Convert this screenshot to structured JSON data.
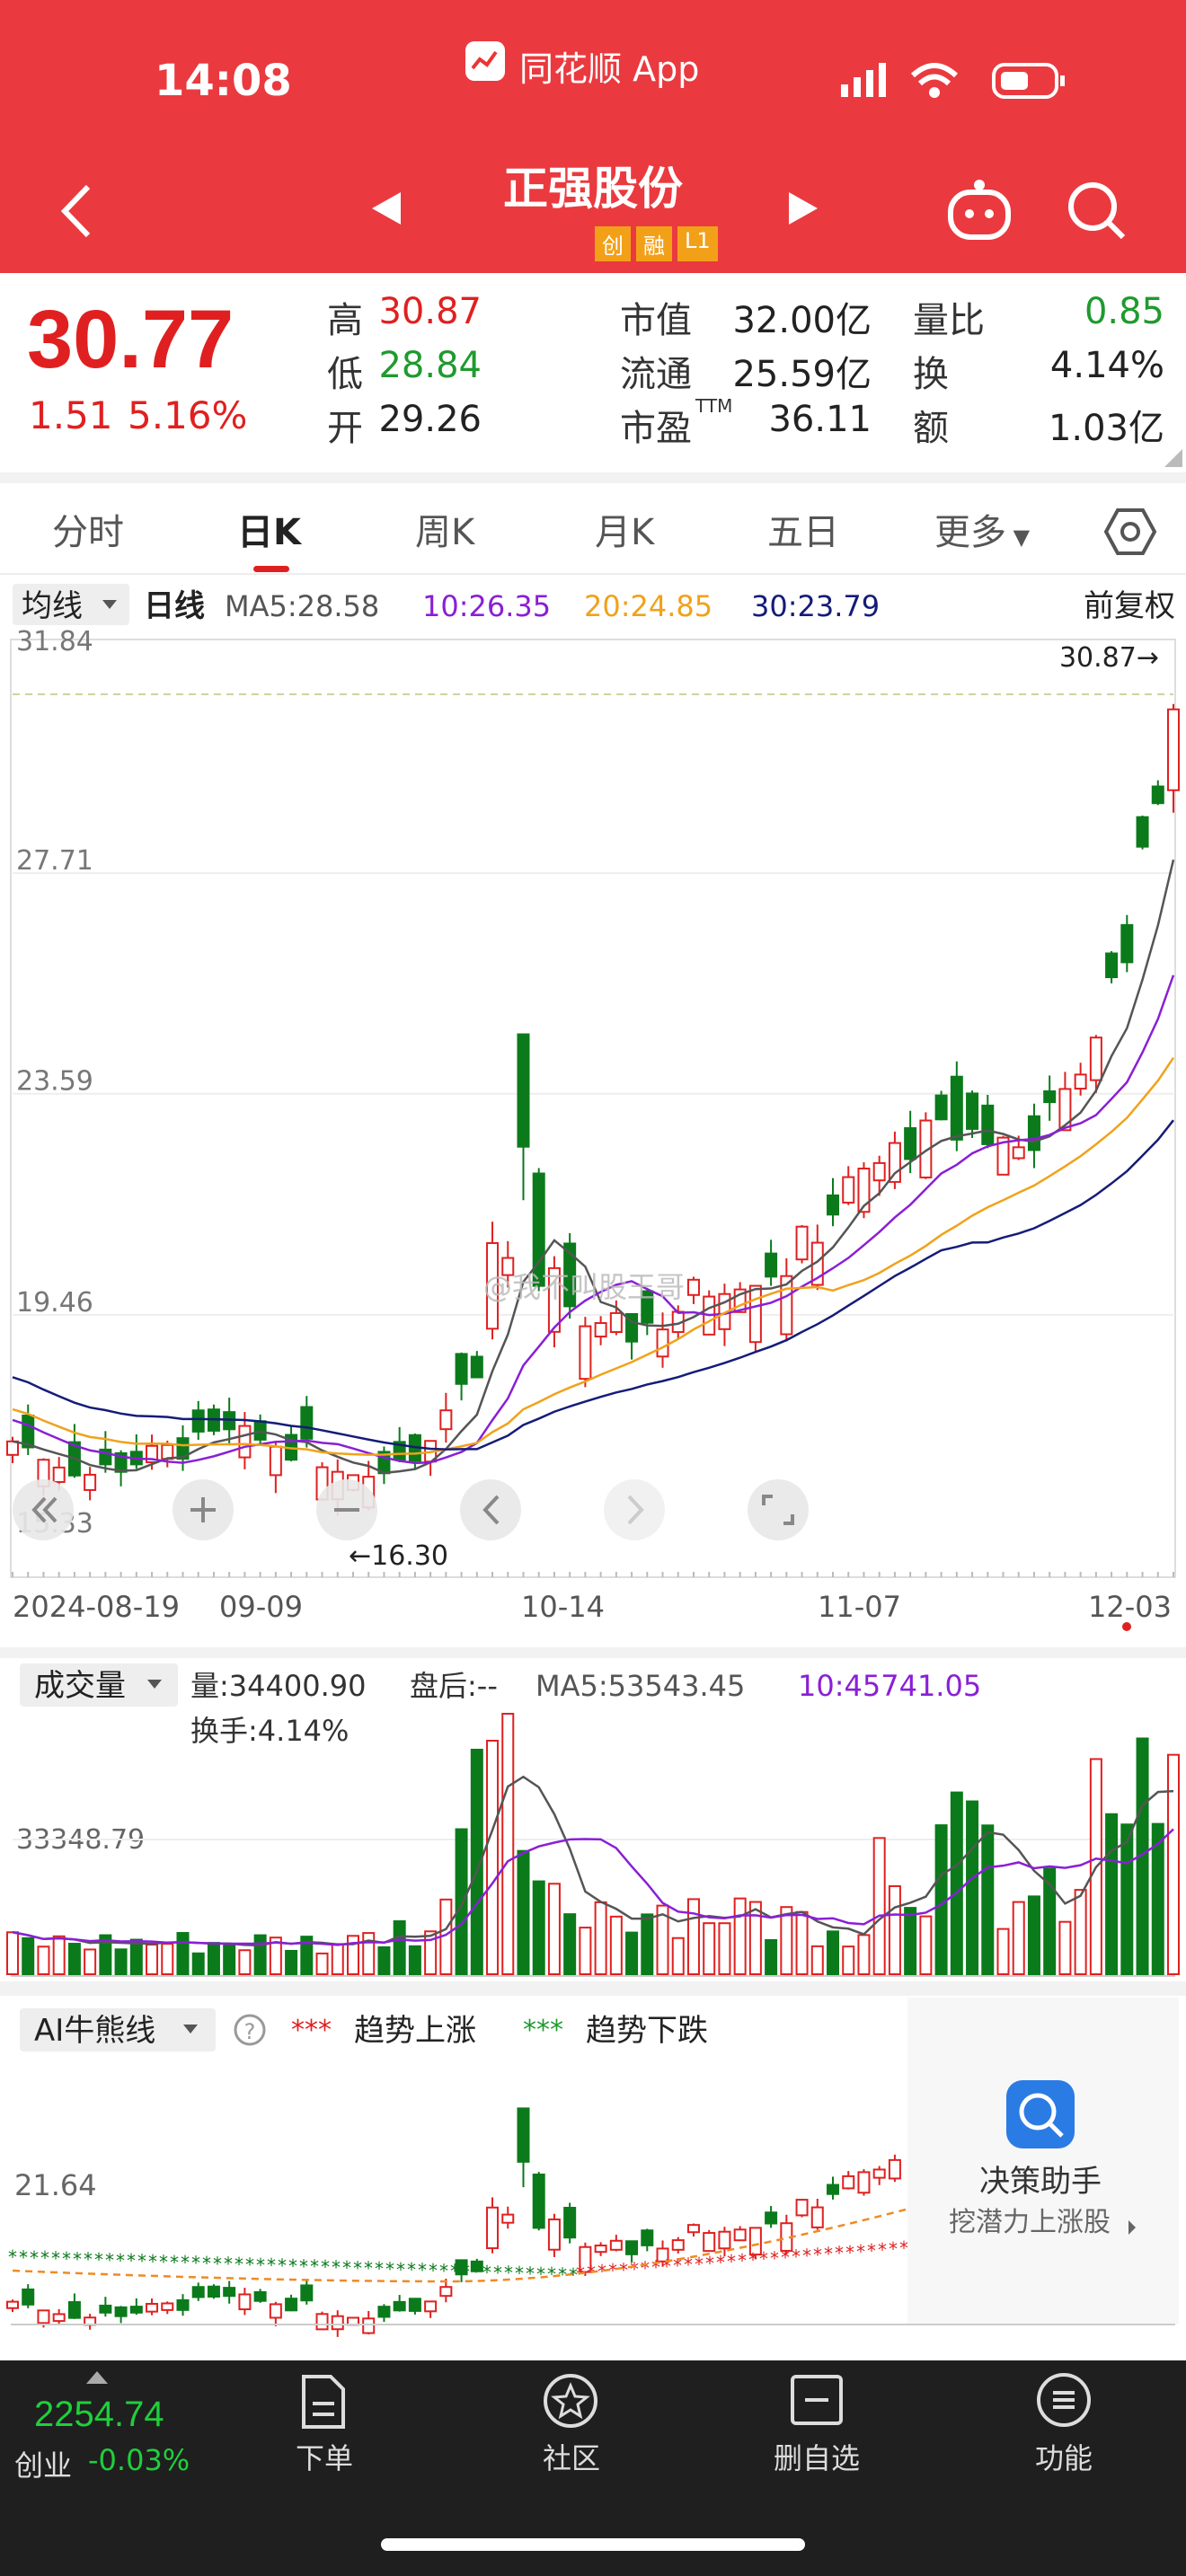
{
  "status": {
    "time": "14:08",
    "app": "同花顺 App"
  },
  "nav": {
    "title": "正强股份",
    "badges": [
      "创",
      "融",
      "L1"
    ]
  },
  "quote": {
    "price": "30.77",
    "change": "1.51",
    "change_pct": "5.16%",
    "stats": [
      {
        "l": "高",
        "v": "30.87",
        "c": "#e02020"
      },
      {
        "l": "低",
        "v": "28.84",
        "c": "#1f9a2e"
      },
      {
        "l": "开",
        "v": "29.26",
        "c": "#222222"
      },
      {
        "l": "市值",
        "v": "32.00亿",
        "c": "#222222"
      },
      {
        "l": "流通",
        "v": "25.59亿",
        "c": "#222222"
      },
      {
        "l": "市盈",
        "sup": "TTM",
        "v": "36.11",
        "c": "#222222"
      },
      {
        "l": "量比",
        "v": "0.85",
        "c": "#1f9a2e"
      },
      {
        "l": "换",
        "v": "4.14%",
        "c": "#222222"
      },
      {
        "l": "额",
        "v": "1.03亿",
        "c": "#222222"
      }
    ]
  },
  "tabs": [
    "分时",
    "日K",
    "周K",
    "月K",
    "五日",
    "更多"
  ],
  "kline": {
    "indicator": "均线",
    "period": "日线",
    "ma5": "MA5:28.58",
    "ma10": "10:26.35",
    "ma20": "20:24.85",
    "ma30": "30:23.79",
    "adj": "前复权",
    "yticks": [
      "31.84",
      "27.71",
      "23.59",
      "19.46",
      "15.33"
    ],
    "high_label": "30.87→",
    "low_label": "←16.30",
    "dates": [
      "2024-08-19",
      "09-09",
      "10-14",
      "11-07",
      "12-03"
    ],
    "watermark": "@我不叫股王哥"
  },
  "volume": {
    "indicator": "成交量",
    "vol": "量:34400.90",
    "after": "盘后:--",
    "ma5": "MA5:53543.45",
    "ma10": "10:45741.05",
    "turnover": "换手:4.14%",
    "ytick": "33348.79"
  },
  "ai": {
    "indicator": "AI牛熊线",
    "legend_up": "趋势上涨",
    "legend_down": "趋势下跌",
    "ytick": "21.64",
    "assistant_title": "决策助手",
    "assistant_sub": "挖潜力上涨股"
  },
  "bottom": {
    "index_value": "2254.74",
    "index_name": "创业",
    "index_change": "-0.03%",
    "items": [
      "下单",
      "社区",
      "删自选",
      "功能"
    ]
  },
  "colors": {
    "up": "#e02020",
    "down": "#0b7a1b",
    "header": "#ea3a3f",
    "ma5": "#555555",
    "ma10": "#8a1fd6",
    "ma20": "#f0a21b",
    "ma30": "#151c78"
  }
}
